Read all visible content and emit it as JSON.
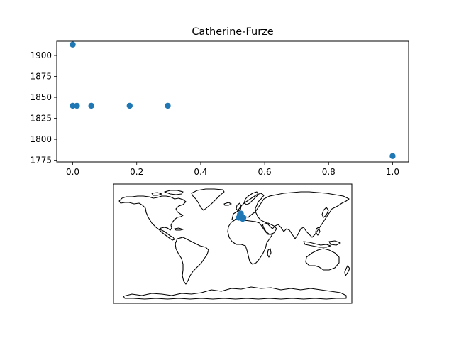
{
  "chart_data": [
    {
      "type": "scatter",
      "title": "Catherine-Furze",
      "xlabel": "",
      "ylabel": "",
      "xlim": [
        -0.05,
        1.05
      ],
      "ylim": [
        1773,
        1917
      ],
      "xticks": [
        0.0,
        0.2,
        0.4,
        0.6,
        0.8,
        1.0
      ],
      "xtick_labels": [
        "0.0",
        "0.2",
        "0.4",
        "0.6",
        "0.8",
        "1.0"
      ],
      "yticks": [
        1775,
        1800,
        1825,
        1850,
        1875,
        1900
      ],
      "ytick_labels": [
        "1775",
        "1800",
        "1825",
        "1850",
        "1875",
        "1900"
      ],
      "grid": false,
      "color": "#1f77b4",
      "points": [
        {
          "x": 0.0,
          "y": 1913
        },
        {
          "x": 0.0,
          "y": 1840
        },
        {
          "x": 0.013,
          "y": 1840
        },
        {
          "x": 0.058,
          "y": 1840
        },
        {
          "x": 0.178,
          "y": 1840
        },
        {
          "x": 0.297,
          "y": 1840
        },
        {
          "x": 1.0,
          "y": 1780
        }
      ]
    },
    {
      "type": "map",
      "projection": "plate-carree",
      "extent": {
        "lon": [
          -180,
          180
        ],
        "lat": [
          -90,
          90
        ]
      },
      "color": "#1f77b4",
      "points": [
        {
          "lon": 12.5,
          "lat": 41.9
        },
        {
          "lon": 14.2,
          "lat": 40.8
        },
        {
          "lon": 15.1,
          "lat": 37.5
        },
        {
          "lon": 16.2,
          "lat": 39.2
        },
        {
          "lon": 9.2,
          "lat": 39.2
        },
        {
          "lon": 10.9,
          "lat": 43.8
        },
        {
          "lon": 12.3,
          "lat": 45.4
        }
      ]
    }
  ]
}
